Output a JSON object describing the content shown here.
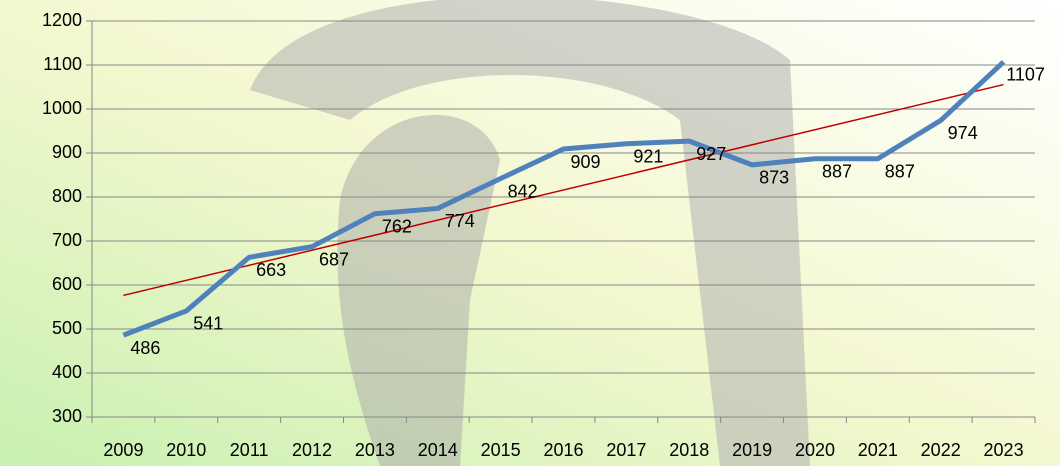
{
  "chart_data": {
    "type": "line",
    "categories": [
      "2009",
      "2010",
      "2011",
      "2012",
      "2013",
      "2014",
      "2015",
      "2016",
      "2017",
      "2018",
      "2019",
      "2020",
      "2021",
      "2022",
      "2023"
    ],
    "series": [
      {
        "color": "#4f81bd",
        "values": [
          486,
          541,
          663,
          687,
          762,
          774,
          842,
          909,
          921,
          927,
          873,
          887,
          887,
          974,
          1107
        ]
      }
    ],
    "ylim": [
      300,
      1200
    ],
    "yticks": [
      300,
      400,
      500,
      600,
      700,
      800,
      900,
      1000,
      1100,
      1200
    ],
    "grid": true,
    "trendline": true,
    "trendline_color": "#c00000",
    "data_labels": true
  }
}
